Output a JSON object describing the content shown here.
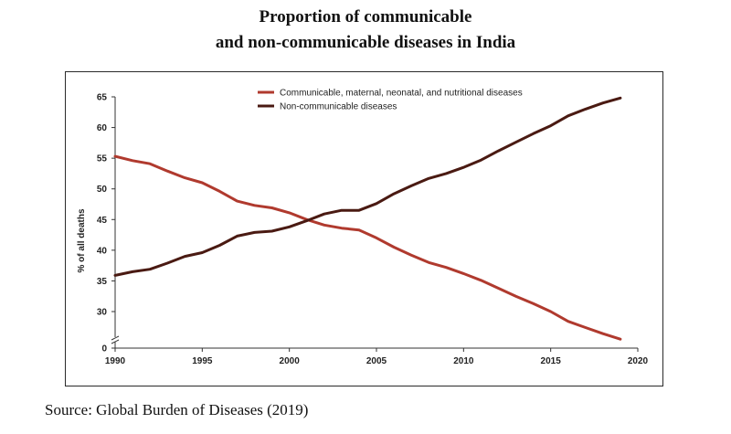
{
  "page": {
    "title_line1": "Proportion of communicable",
    "title_line2": "and non-communicable diseases in India",
    "source": "Source: Global Burden of Diseases (2019)"
  },
  "chart_data": {
    "type": "line",
    "title": "Proportion of communicable and non-communicable diseases in India",
    "xlabel": "",
    "ylabel": "% of all deaths",
    "xlim": [
      1990,
      2020
    ],
    "ylim": [
      25,
      65
    ],
    "y_axis_break": true,
    "x_ticks": [
      1990,
      1995,
      2000,
      2005,
      2010,
      2015,
      2020
    ],
    "y_ticks": [
      30,
      35,
      40,
      45,
      50,
      55,
      60,
      65
    ],
    "y_zero_label": "0",
    "grid": false,
    "legend_position": "top-center",
    "x": [
      1990,
      1991,
      1992,
      1993,
      1994,
      1995,
      1996,
      1997,
      1998,
      1999,
      2000,
      2001,
      2002,
      2003,
      2004,
      2005,
      2006,
      2007,
      2008,
      2009,
      2010,
      2011,
      2012,
      2013,
      2014,
      2015,
      2016,
      2017,
      2018,
      2019
    ],
    "series": [
      {
        "name": "Communicable, maternal, neonatal, and nutritional diseases",
        "color": "#b03a2e",
        "values": [
          55.3,
          54.6,
          54.1,
          52.9,
          51.8,
          51.0,
          49.6,
          48.0,
          47.3,
          46.9,
          46.1,
          45.0,
          44.1,
          43.6,
          43.3,
          42.0,
          40.5,
          39.2,
          38.0,
          37.2,
          36.2,
          35.1,
          33.8,
          32.5,
          31.3,
          30.0,
          28.4,
          27.4,
          26.4,
          25.5
        ]
      },
      {
        "name": "Non-communicable diseases",
        "color": "#4a1a12",
        "values": [
          35.9,
          36.5,
          36.9,
          37.9,
          39.0,
          39.6,
          40.8,
          42.3,
          42.9,
          43.1,
          43.8,
          44.8,
          45.9,
          46.5,
          46.5,
          47.6,
          49.2,
          50.5,
          51.7,
          52.5,
          53.5,
          54.7,
          56.2,
          57.6,
          59.0,
          60.3,
          61.9,
          63.0,
          64.0,
          64.8
        ]
      }
    ]
  }
}
